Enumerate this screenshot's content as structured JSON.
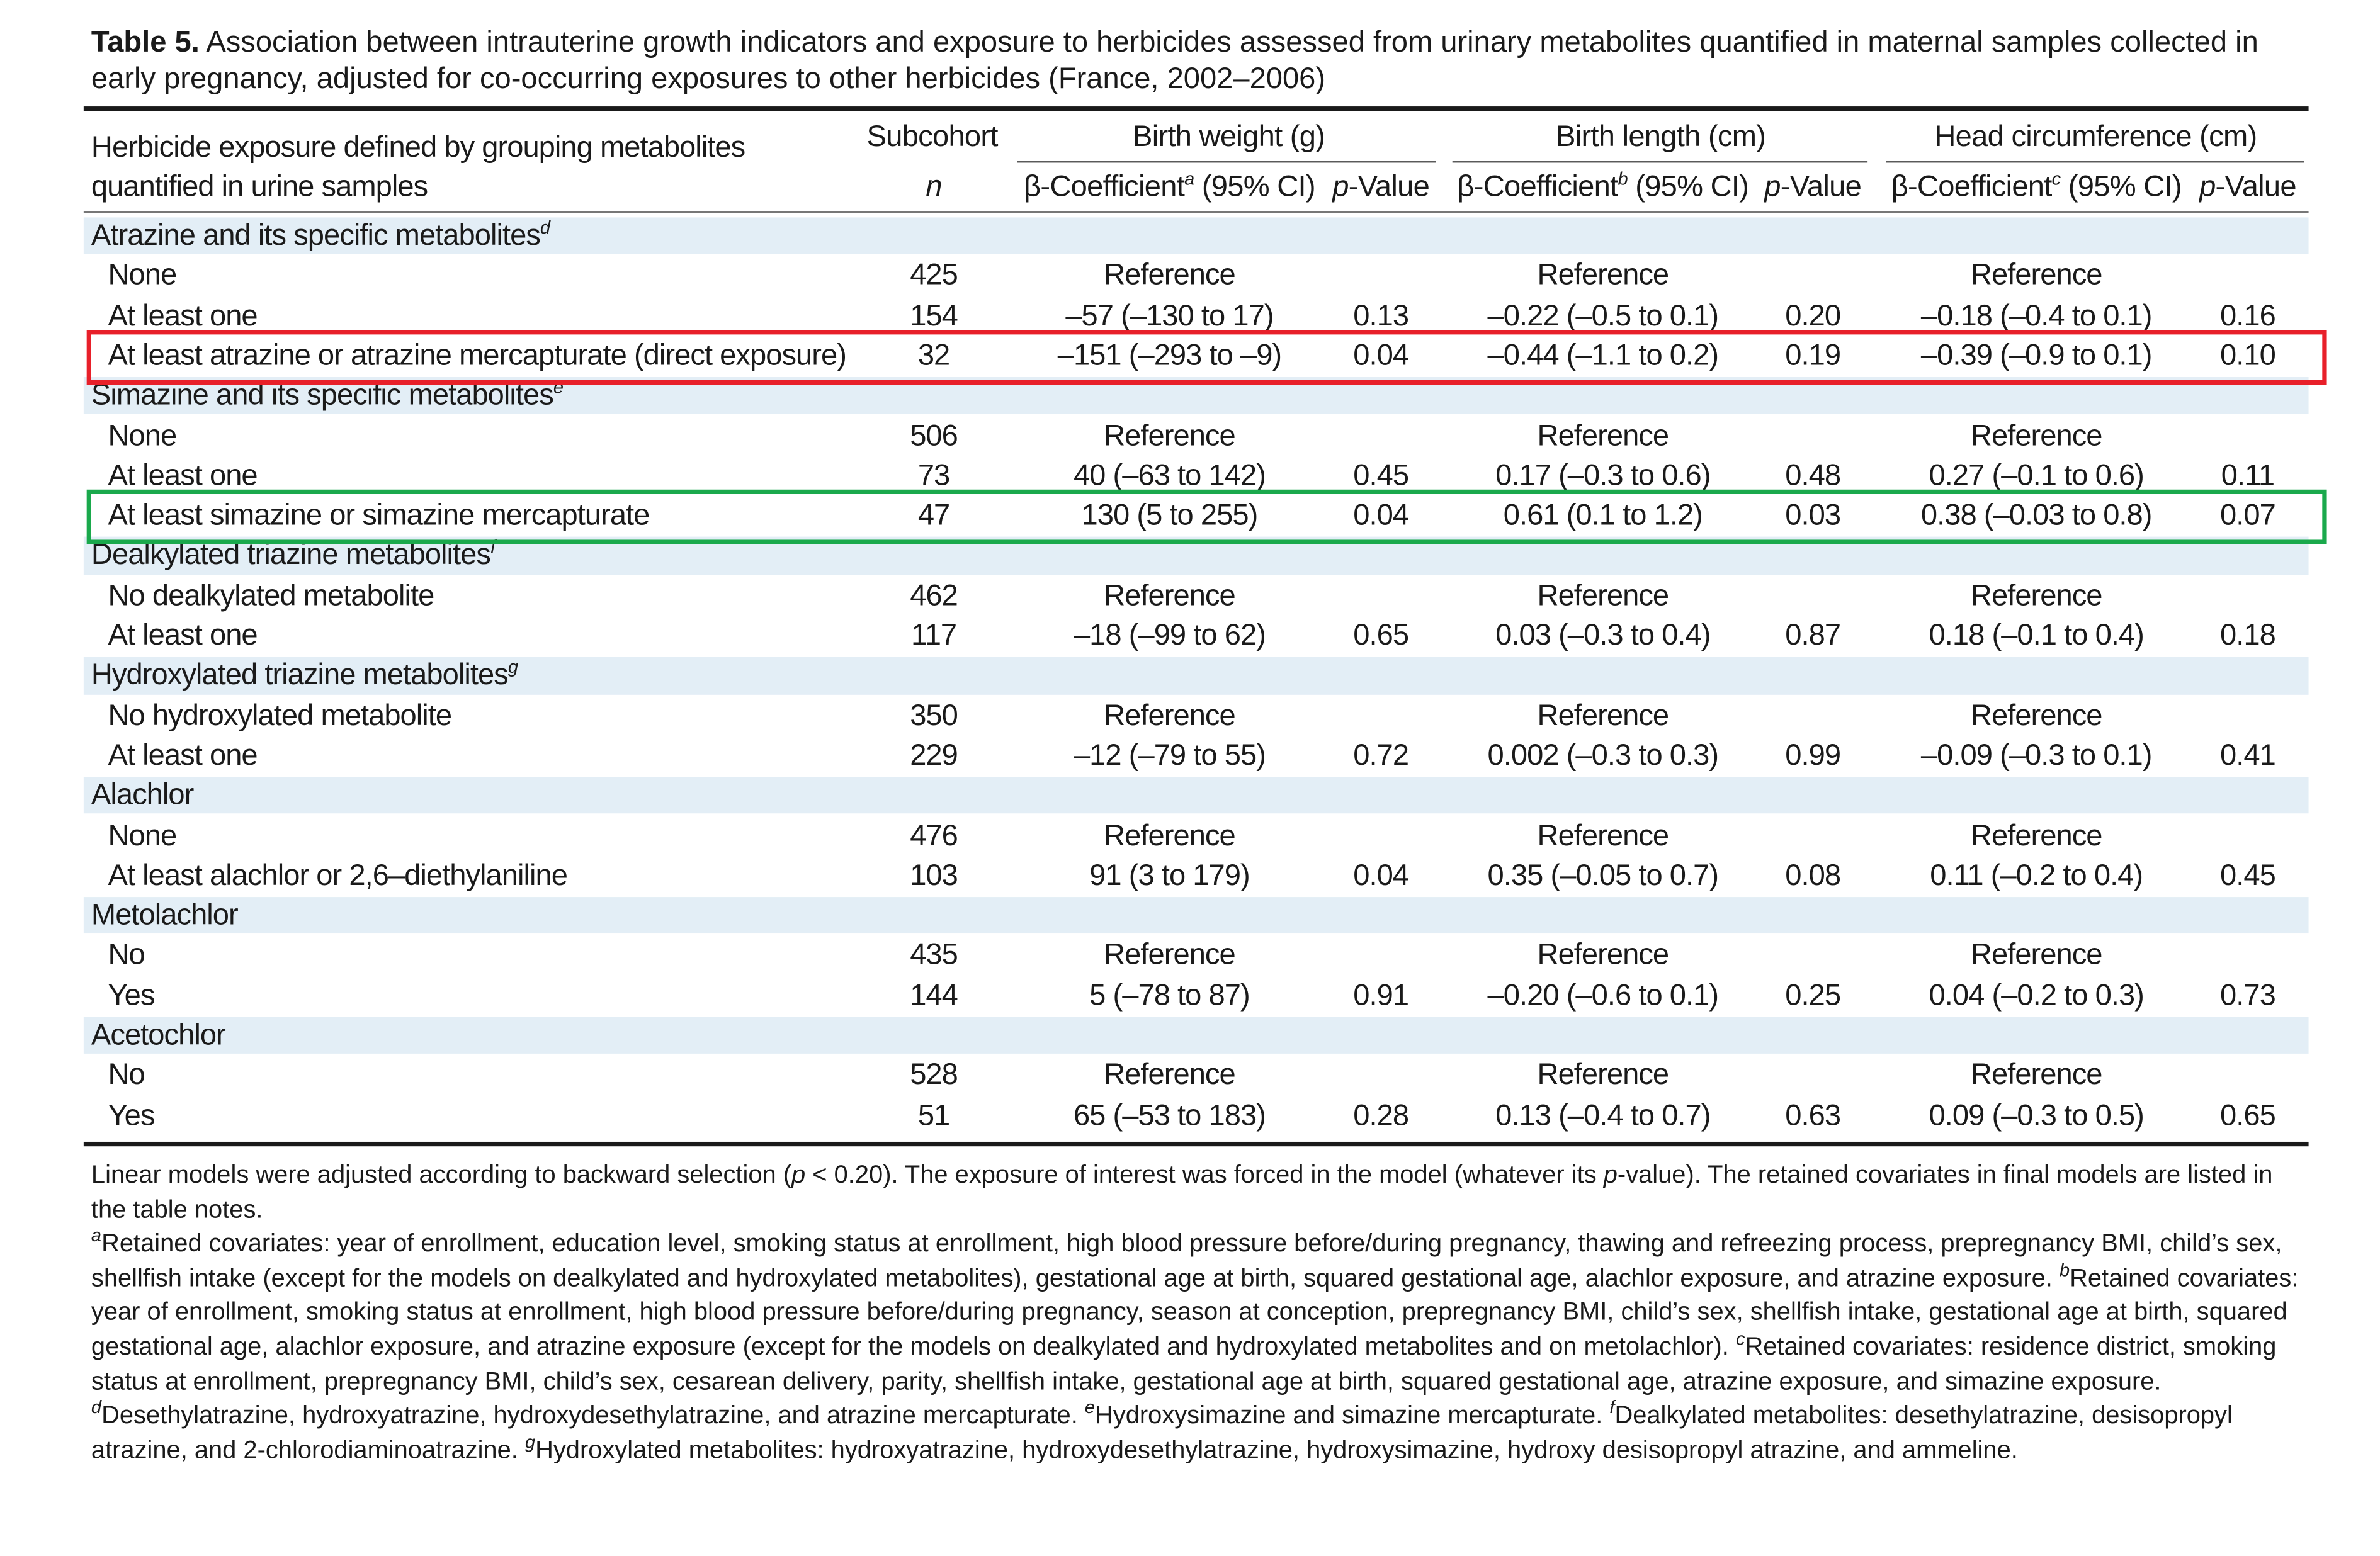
{
  "title": {
    "label": "Table 5.",
    "text": "Association between intrauterine growth indicators and exposure to herbicides assessed from urinary metabolites quantified in maternal samples collected in early pregnancy, adjusted for co-occurring exposures to other herbicides (France, 2002–2006)"
  },
  "header": {
    "col1_line1": "Herbicide exposure defined by grouping metabolites",
    "col1_line2": "quantified in urine samples",
    "subcohort": "Subcohort",
    "n": "n",
    "birth_weight": "Birth weight (g)",
    "birth_length": "Birth length (cm)",
    "head_circ": "Head circumference (cm)",
    "beta_label": "β-Coefficient",
    "ci_label": " (95% CI)",
    "sup_a": "a",
    "sup_b": "b",
    "sup_c": "c",
    "p_label": "p",
    "value_label": "-Value"
  },
  "rows": [
    {
      "type": "group",
      "label": "Atrazine and its specific metabolites",
      "sup": "d"
    },
    {
      "label": "None",
      "n": "425",
      "bw": "Reference",
      "bw_p": "",
      "bl": "Reference",
      "bl_p": "",
      "hc": "Reference",
      "hc_p": ""
    },
    {
      "label": "At least one",
      "n": "154",
      "bw": "–57 (–130 to 17)",
      "bw_p": "0.13",
      "bl": "–0.22 (–0.5 to 0.1)",
      "bl_p": "0.20",
      "hc": "–0.18 (–0.4 to 0.1)",
      "hc_p": "0.16"
    },
    {
      "label": "At least atrazine or atrazine mercapturate (direct exposure)",
      "n": "32",
      "bw": "–151 (–293 to –9)",
      "bw_p": "0.04",
      "bl": "–0.44 (–1.1 to 0.2)",
      "bl_p": "0.19",
      "hc": "–0.39 (–0.9 to 0.1)",
      "hc_p": "0.10"
    },
    {
      "type": "group",
      "label": "Simazine and its specific metabolites",
      "sup": "e"
    },
    {
      "label": "None",
      "n": "506",
      "bw": "Reference",
      "bw_p": "",
      "bl": "Reference",
      "bl_p": "",
      "hc": "Reference",
      "hc_p": ""
    },
    {
      "label": "At least one",
      "n": "73",
      "bw": "40 (–63 to 142)",
      "bw_p": "0.45",
      "bl": "0.17 (–0.3 to 0.6)",
      "bl_p": "0.48",
      "hc": "0.27 (–0.1 to 0.6)",
      "hc_p": "0.11"
    },
    {
      "label": "At least simazine or simazine mercapturate",
      "n": "47",
      "bw": "130 (5 to 255)",
      "bw_p": "0.04",
      "bl": "0.61 (0.1 to 1.2)",
      "bl_p": "0.03",
      "hc": "0.38 (–0.03 to 0.8)",
      "hc_p": "0.07"
    },
    {
      "type": "group",
      "label": "Dealkylated triazine metabolites",
      "sup": "f"
    },
    {
      "label": "No dealkylated metabolite",
      "n": "462",
      "bw": "Reference",
      "bw_p": "",
      "bl": "Reference",
      "bl_p": "",
      "hc": "Reference",
      "hc_p": ""
    },
    {
      "label": "At least one",
      "n": "117",
      "bw": "–18 (–99 to 62)",
      "bw_p": "0.65",
      "bl": "0.03 (–0.3 to 0.4)",
      "bl_p": "0.87",
      "hc": "0.18 (–0.1 to 0.4)",
      "hc_p": "0.18"
    },
    {
      "type": "group",
      "label": "Hydroxylated triazine metabolites",
      "sup": "g"
    },
    {
      "label": "No hydroxylated metabolite",
      "n": "350",
      "bw": "Reference",
      "bw_p": "",
      "bl": "Reference",
      "bl_p": "",
      "hc": "Reference",
      "hc_p": ""
    },
    {
      "label": "At least one",
      "n": "229",
      "bw": "–12 (–79 to 55)",
      "bw_p": "0.72",
      "bl": "0.002 (–0.3 to 0.3)",
      "bl_p": "0.99",
      "hc": "–0.09 (–0.3 to 0.1)",
      "hc_p": "0.41"
    },
    {
      "type": "group",
      "label": "Alachlor",
      "sup": ""
    },
    {
      "label": "None",
      "n": "476",
      "bw": "Reference",
      "bw_p": "",
      "bl": "Reference",
      "bl_p": "",
      "hc": "Reference",
      "hc_p": ""
    },
    {
      "label": "At least alachlor or 2,6–diethylaniline",
      "n": "103",
      "bw": "91 (3 to 179)",
      "bw_p": "0.04",
      "bl": "0.35 (–0.05 to 0.7)",
      "bl_p": "0.08",
      "hc": "0.11 (–0.2 to 0.4)",
      "hc_p": "0.45"
    },
    {
      "type": "group",
      "label": "Metolachlor",
      "sup": ""
    },
    {
      "label": "No",
      "n": "435",
      "bw": "Reference",
      "bw_p": "",
      "bl": "Reference",
      "bl_p": "",
      "hc": "Reference",
      "hc_p": ""
    },
    {
      "label": "Yes",
      "n": "144",
      "bw": "5 (–78 to 87)",
      "bw_p": "0.91",
      "bl": "–0.20 (–0.6 to 0.1)",
      "bl_p": "0.25",
      "hc": "0.04 (–0.2 to 0.3)",
      "hc_p": "0.73"
    },
    {
      "type": "group",
      "label": "Acetochlor",
      "sup": ""
    },
    {
      "label": "No",
      "n": "528",
      "bw": "Reference",
      "bw_p": "",
      "bl": "Reference",
      "bl_p": "",
      "hc": "Reference",
      "hc_p": ""
    },
    {
      "label": "Yes",
      "n": "51",
      "bw": "65 (–53 to 183)",
      "bw_p": "0.28",
      "bl": "0.13 (–0.4 to 0.7)",
      "bl_p": "0.63",
      "hc": "0.09 (–0.3 to 0.5)",
      "hc_p": "0.65"
    }
  ],
  "highlights": [
    {
      "row_index": 3,
      "color": "#e8202a"
    },
    {
      "row_index": 7,
      "color": "#1aa94c"
    }
  ],
  "notes": {
    "linear_pre": "Linear models were adjusted according to backward selection (",
    "linear_p": "p",
    "linear_mid": " < 0.20). The exposure of interest was forced in the model (whatever its ",
    "linear_p2": "p",
    "linear_post": "-value). The retained covariates in final models are listed in the table notes.",
    "a_sup": "a",
    "a": "Retained covariates: year of enrollment, education level, smoking status at enrollment, high blood pressure before/during pregnancy, thawing and refreezing process, prepregnancy BMI, child’s sex, shellfish intake (except for the models on dealkylated and hydroxylated metabolites), gestational age at birth, squared gestational age, alachlor exposure, and atrazine exposure. ",
    "b_sup": "b",
    "b": "Retained covariates: year of enrollment, smoking status at enrollment, high blood pressure before/during pregnancy, season at conception, prepregnancy BMI, child’s sex, shellfish intake, gestational age at birth, squared gestational age, alachlor exposure, and atrazine exposure (except for the models on dealkylated and hydroxylated metabolites and on metolachlor). ",
    "c_sup": "c",
    "c": "Retained covariates: residence district, smoking status at enrollment, prepregnancy BMI, child’s sex, cesarean delivery, parity, shellfish intake, gestational age at birth, squared gestational age, atrazine exposure, and simazine exposure. ",
    "d_sup": "d",
    "d": "Desethylatrazine, hydroxyatrazine, hydroxydesethylatrazine, and atrazine mercapturate. ",
    "e_sup": "e",
    "e": "Hydroxysimazine and simazine mercapturate. ",
    "f_sup": "f",
    "f": "Dealkylated metabolites: desethylatrazine, desisopropyl atrazine, and 2-chlorodiaminoatrazine. ",
    "g_sup": "g",
    "g": "Hydroxylated metabolites: hydroxyatrazine, hydroxydesethylatrazine, hydroxysimazine, hydroxy desisopropyl atrazine, and ammeline."
  }
}
